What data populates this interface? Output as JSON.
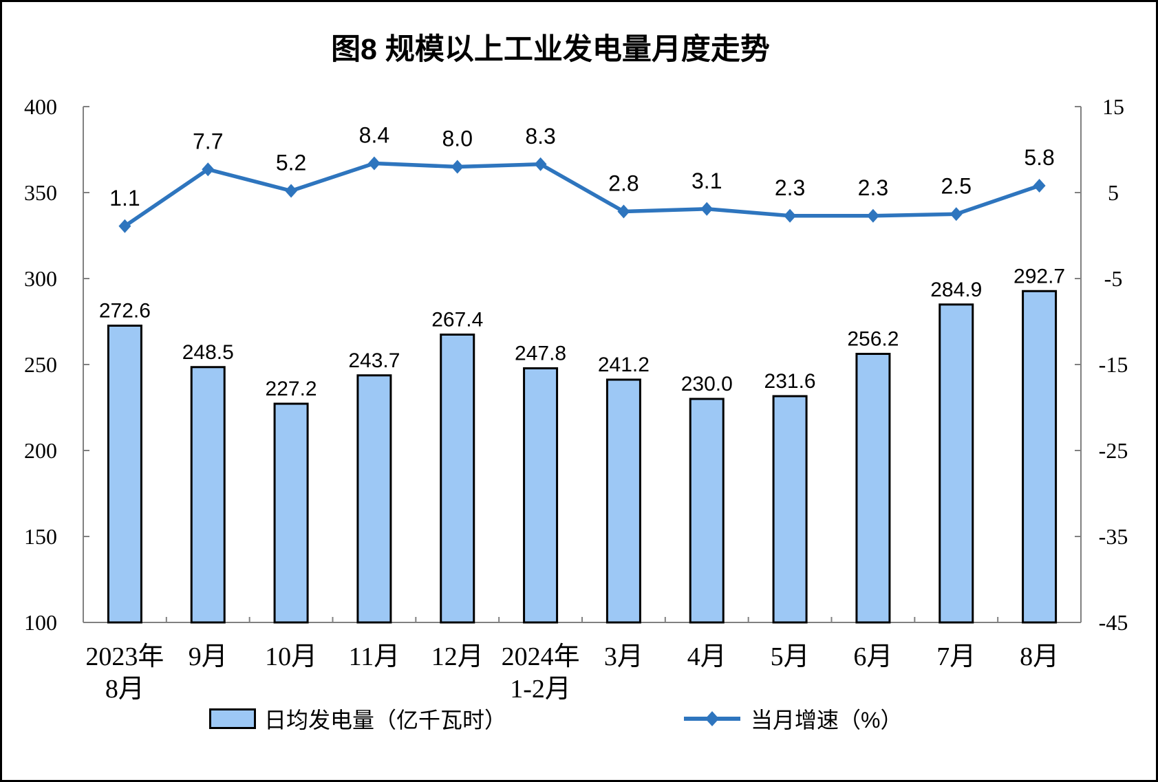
{
  "colors": {
    "bar_fill": "#9DC8F5",
    "bar_border": "#000000",
    "line": "#2E75BE",
    "axis": "#808080",
    "text": "#000000"
  },
  "chart_data": {
    "type": "bar+line",
    "title": "图8 规模以上工业发电量月度走势",
    "categories": [
      "2023年\n8月",
      "9月",
      "10月",
      "11月",
      "12月",
      "2024年\n1-2月",
      "3月",
      "4月",
      "5月",
      "6月",
      "7月",
      "8月"
    ],
    "series": [
      {
        "name": "日均发电量（亿千瓦时）",
        "type": "bar",
        "axis": "left",
        "values": [
          272.6,
          248.5,
          227.2,
          243.7,
          267.4,
          247.8,
          241.2,
          230.0,
          231.6,
          256.2,
          284.9,
          292.7
        ]
      },
      {
        "name": "当月增速（%）",
        "type": "line",
        "axis": "right",
        "values": [
          1.1,
          7.7,
          5.2,
          8.4,
          8.0,
          8.3,
          2.8,
          3.1,
          2.3,
          2.3,
          2.5,
          5.8
        ]
      }
    ],
    "left_axis": {
      "min": 100,
      "max": 400,
      "ticks": [
        100,
        150,
        200,
        250,
        300,
        350,
        400
      ]
    },
    "right_axis": {
      "min": -45,
      "max": 15,
      "ticks": [
        -45,
        -35,
        -25,
        -15,
        -5,
        5,
        15
      ]
    },
    "grid": false,
    "legend_position": "bottom"
  }
}
